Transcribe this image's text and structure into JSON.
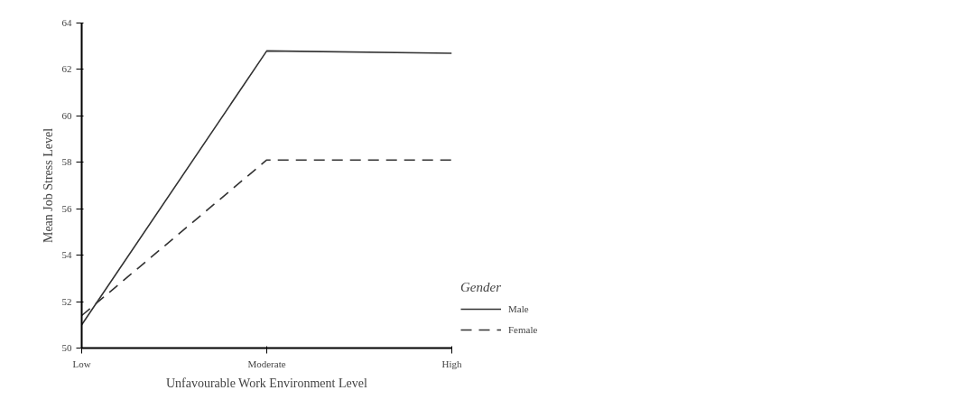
{
  "chart_data": {
    "type": "line",
    "xlabel": "Unfavourable Work Environment Level",
    "ylabel": "Mean Job Stress Level",
    "legend_title": "Gender",
    "categories": [
      "Low",
      "Moderate",
      "High"
    ],
    "series": [
      {
        "name": "Male",
        "color": "#333333",
        "values": [
          51.0,
          62.8,
          62.7
        ],
        "line_style": "solid"
      },
      {
        "name": "Female",
        "color": "#333333",
        "values": [
          51.4,
          58.1,
          58.1
        ],
        "line_style": "dashed"
      }
    ],
    "ylim": [
      50,
      64
    ],
    "yticks": [
      50,
      52,
      54,
      56,
      58,
      60,
      62,
      64
    ],
    "grid": false,
    "legend": "right",
    "marker": "none"
  }
}
